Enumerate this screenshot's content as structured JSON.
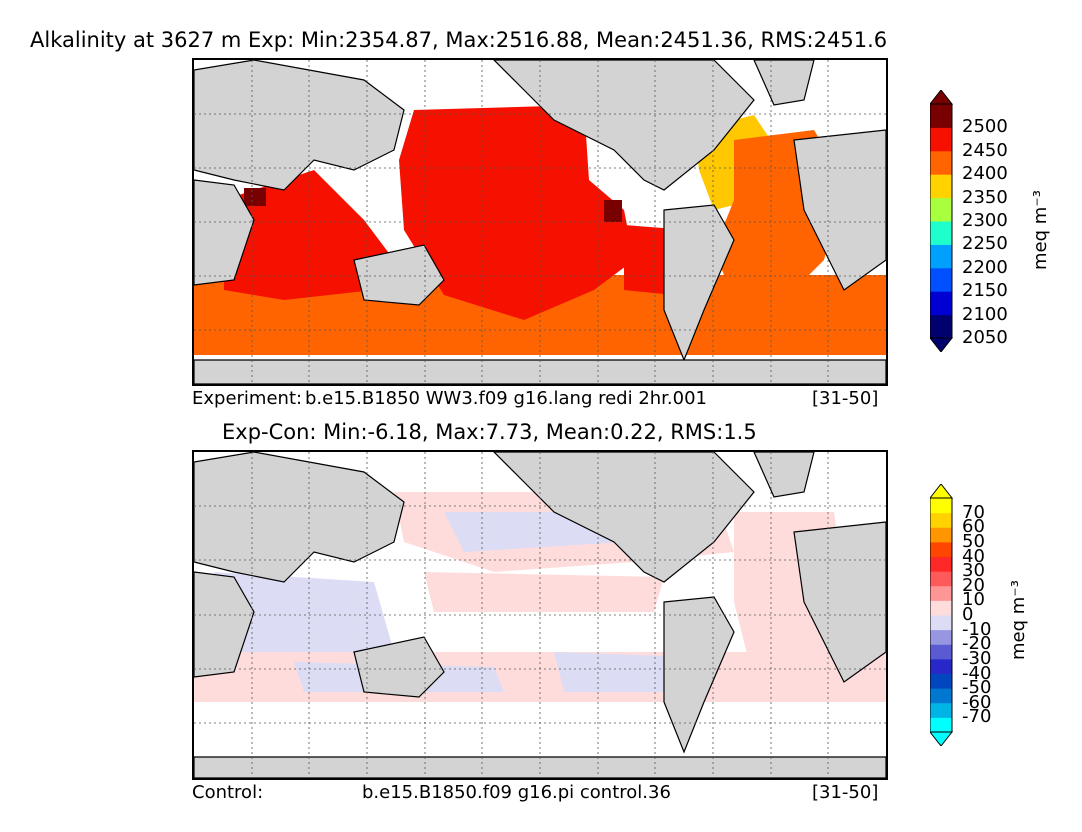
{
  "chart_data": [
    {
      "type": "heatmap",
      "title": "Alkalinity at 3627 m Exp: Min:2354.87, Max:2516.88, Mean:2451.36, RMS:2451.6",
      "map": "global ocean",
      "footer": {
        "label": "Experiment:",
        "case": "b.e15.B1850 WW3.f09 g16.lang redi 2hr.001",
        "years": "[31-50]"
      },
      "colorbar": {
        "unit": "meq m⁻³",
        "ticks": [
          "2500",
          "2450",
          "2400",
          "2350",
          "2300",
          "2250",
          "2200",
          "2150",
          "2100",
          "2050"
        ],
        "colors": [
          "#00006e",
          "#0000d2",
          "#0050ff",
          "#00a0ff",
          "#1effcc",
          "#a8ff3e",
          "#ffd200",
          "#ff6400",
          "#f51000",
          "#780000"
        ],
        "extend": "both"
      },
      "stats": {
        "min": 2354.87,
        "max": 2516.88,
        "mean": 2451.36,
        "rms": 2451.6
      }
    },
    {
      "type": "heatmap",
      "title": "Exp-Con: Min:-6.18, Max:7.73, Mean:0.22, RMS:1.5",
      "map": "global ocean",
      "footer": {
        "label": "Control:",
        "case": "b.e15.B1850.f09 g16.pi control.36",
        "years": "[31-50]"
      },
      "colorbar": {
        "unit": "meq m⁻³",
        "ticks": [
          "70",
          "60",
          "50",
          "40",
          "30",
          "20",
          "10",
          "0",
          "-10",
          "-20",
          "-30",
          "-40",
          "-50",
          "-60",
          "-70"
        ],
        "colors": [
          "#00ffff",
          "#00b4e6",
          "#0078d2",
          "#0046be",
          "#2828c8",
          "#5a5ad2",
          "#9696e1",
          "#dcdcf5",
          "#ffdcdc",
          "#ff9696",
          "#ff5a5a",
          "#ff2828",
          "#ff4600",
          "#ff9600",
          "#ffd200",
          "#ffff00"
        ],
        "extend": "both"
      },
      "stats": {
        "min": -6.18,
        "max": 7.73,
        "mean": 0.22,
        "rms": 1.5
      }
    }
  ]
}
